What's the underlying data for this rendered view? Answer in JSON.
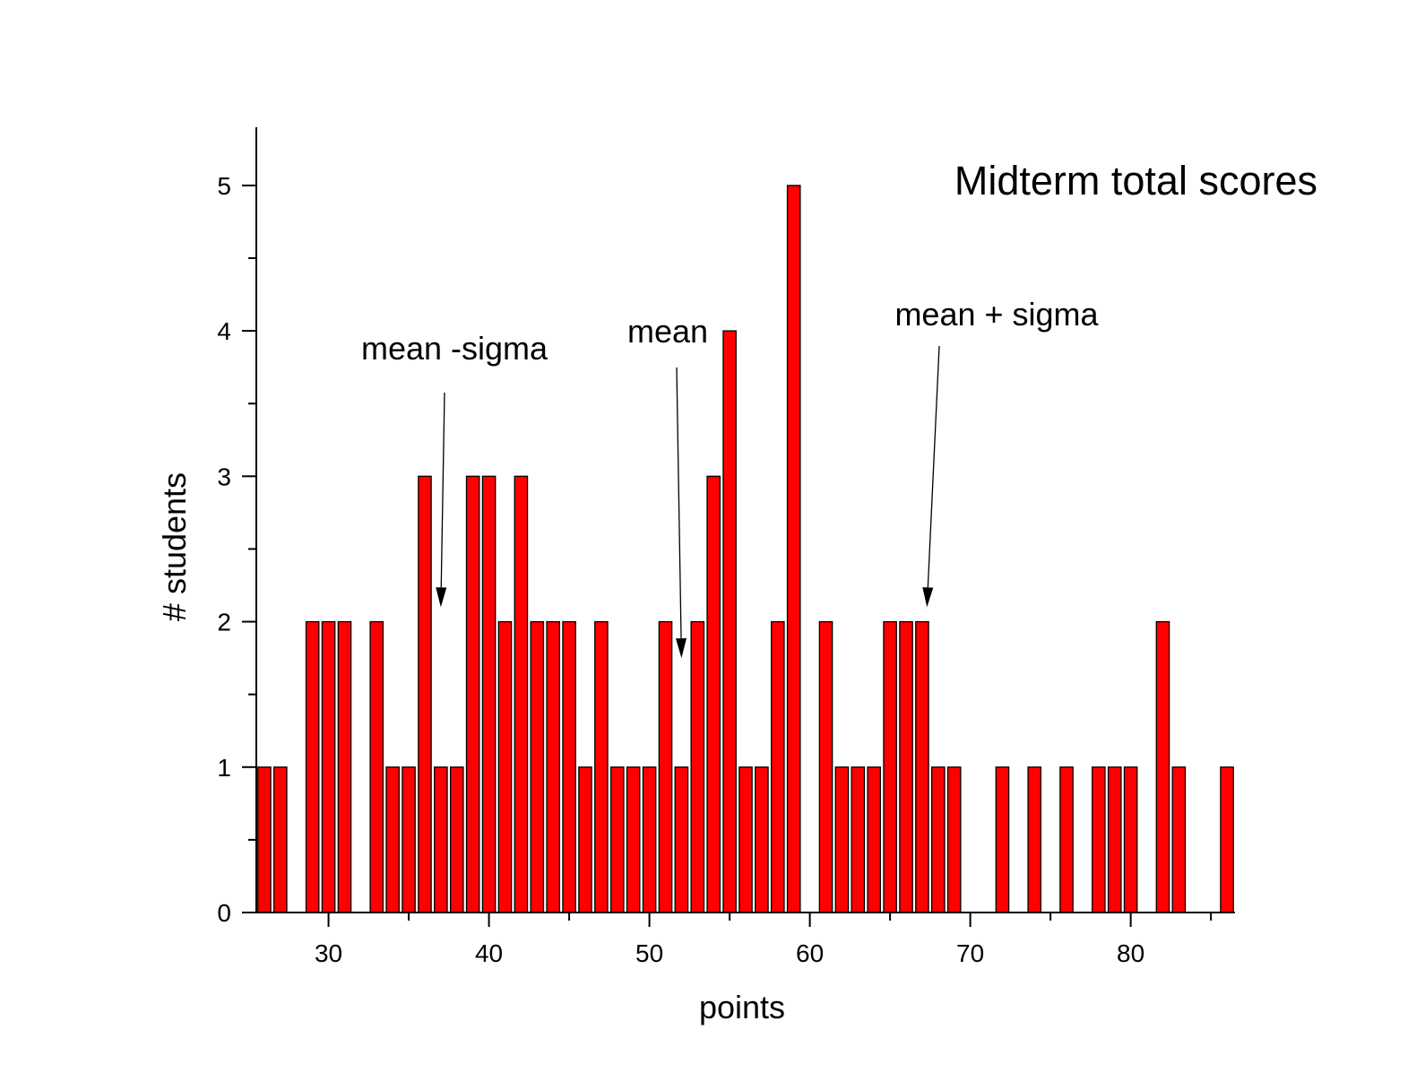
{
  "chart_data": {
    "type": "bar",
    "title": "Midterm total scores",
    "xlabel": "points",
    "ylabel": "# students",
    "xlim": [
      25.5,
      86.5
    ],
    "ylim": [
      0,
      5.4
    ],
    "x_ticks": [
      30,
      40,
      50,
      60,
      70,
      80
    ],
    "y_ticks": [
      0,
      1,
      2,
      3,
      4,
      5
    ],
    "grid": false,
    "bar_color": "#ff0000",
    "bars": [
      {
        "x": 26,
        "y": 1
      },
      {
        "x": 27,
        "y": 1
      },
      {
        "x": 29,
        "y": 2
      },
      {
        "x": 30,
        "y": 2
      },
      {
        "x": 31,
        "y": 2
      },
      {
        "x": 33,
        "y": 2
      },
      {
        "x": 34,
        "y": 1
      },
      {
        "x": 35,
        "y": 1
      },
      {
        "x": 36,
        "y": 3
      },
      {
        "x": 37,
        "y": 1
      },
      {
        "x": 38,
        "y": 1
      },
      {
        "x": 39,
        "y": 3
      },
      {
        "x": 40,
        "y": 3
      },
      {
        "x": 41,
        "y": 2
      },
      {
        "x": 42,
        "y": 3
      },
      {
        "x": 43,
        "y": 2
      },
      {
        "x": 44,
        "y": 2
      },
      {
        "x": 45,
        "y": 2
      },
      {
        "x": 46,
        "y": 1
      },
      {
        "x": 47,
        "y": 2
      },
      {
        "x": 48,
        "y": 1
      },
      {
        "x": 49,
        "y": 1
      },
      {
        "x": 50,
        "y": 1
      },
      {
        "x": 51,
        "y": 2
      },
      {
        "x": 52,
        "y": 1
      },
      {
        "x": 53,
        "y": 2
      },
      {
        "x": 54,
        "y": 3
      },
      {
        "x": 55,
        "y": 4
      },
      {
        "x": 56,
        "y": 1
      },
      {
        "x": 57,
        "y": 1
      },
      {
        "x": 58,
        "y": 2
      },
      {
        "x": 59,
        "y": 5
      },
      {
        "x": 61,
        "y": 2
      },
      {
        "x": 62,
        "y": 1
      },
      {
        "x": 63,
        "y": 1
      },
      {
        "x": 64,
        "y": 1
      },
      {
        "x": 65,
        "y": 2
      },
      {
        "x": 66,
        "y": 2
      },
      {
        "x": 67,
        "y": 2
      },
      {
        "x": 68,
        "y": 1
      },
      {
        "x": 69,
        "y": 1
      },
      {
        "x": 72,
        "y": 1
      },
      {
        "x": 74,
        "y": 1
      },
      {
        "x": 76,
        "y": 1
      },
      {
        "x": 78,
        "y": 1
      },
      {
        "x": 79,
        "y": 1
      },
      {
        "x": 80,
        "y": 1
      },
      {
        "x": 82,
        "y": 2
      },
      {
        "x": 83,
        "y": 1
      },
      {
        "x": 86,
        "y": 1
      }
    ],
    "annotations": [
      {
        "text": "mean -sigma",
        "x": 37,
        "y": 2.1
      },
      {
        "text": "mean",
        "x": 52,
        "y": 1.75
      },
      {
        "text": "mean + sigma",
        "x": 67.3,
        "y": 2.1
      }
    ]
  }
}
